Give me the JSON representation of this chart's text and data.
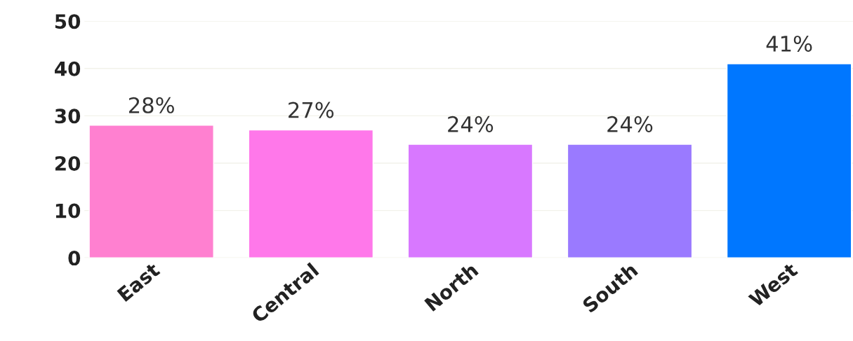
{
  "chart_data": {
    "type": "bar",
    "categories": [
      "East",
      "Central",
      "North",
      "South",
      "West"
    ],
    "values": [
      28,
      27,
      24,
      24,
      41
    ],
    "colors": [
      "#ff80d0",
      "#ff78ea",
      "#d878ff",
      "#9a7aff",
      "#0077ff"
    ],
    "value_labels": [
      "28%",
      "27%",
      "24%",
      "24%",
      "41%"
    ],
    "ylim": [
      0,
      50
    ],
    "yticks": [
      0,
      10,
      20,
      30,
      40,
      50
    ],
    "grid": "y",
    "legend": false
  }
}
